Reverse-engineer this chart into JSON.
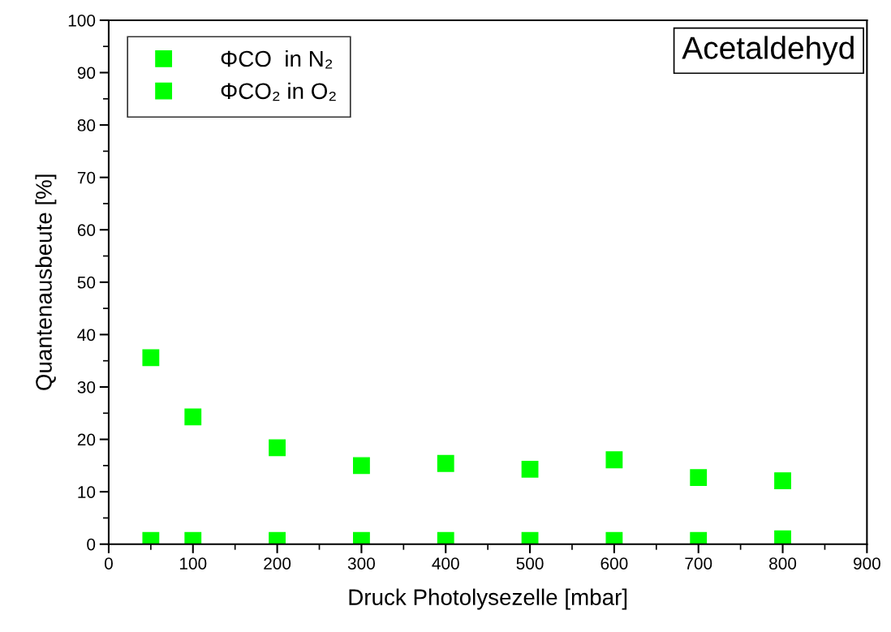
{
  "chart_data": {
    "type": "scatter",
    "xlabel": "Druck Photolysezelle [mbar]",
    "ylabel": "Quantenausbeute [%]",
    "annotations": [
      "Acetaldehyd"
    ],
    "x": [
      50,
      100,
      200,
      300,
      400,
      500,
      600,
      700,
      800
    ],
    "series": [
      {
        "name": "ΦCO  in N₂",
        "color": "#00ff00",
        "values": [
          35.6,
          24.3,
          18.4,
          15.0,
          15.4,
          14.3,
          16.1,
          12.7,
          12.1
        ]
      },
      {
        "name": "ΦCO₂ in O₂",
        "color": "#00ff00",
        "values": [
          0.7,
          0.7,
          0.7,
          0.7,
          0.7,
          0.7,
          0.7,
          0.7,
          1.0
        ]
      }
    ],
    "xlim": [
      0,
      900
    ],
    "ylim": [
      0,
      100
    ],
    "xticks": [
      0,
      {
        "value": 50,
        "label": null
      },
      100,
      {
        "value": 150,
        "label": null
      },
      200,
      {
        "value": 250,
        "label": null
      },
      300,
      {
        "value": 350,
        "label": null
      },
      400,
      {
        "value": 450,
        "label": null
      },
      500,
      {
        "value": 550,
        "label": null
      },
      600,
      {
        "value": 650,
        "label": null
      },
      700,
      {
        "value": 750,
        "label": null
      },
      800,
      {
        "value": 850,
        "label": null
      },
      900
    ],
    "yticks": [
      0,
      {
        "value": 5,
        "label": null
      },
      10,
      {
        "value": 15,
        "label": null
      },
      20,
      {
        "value": 25,
        "label": null
      },
      30,
      {
        "value": 35,
        "label": null
      },
      40,
      {
        "value": 45,
        "label": null
      },
      50,
      {
        "value": 55,
        "label": null
      },
      60,
      {
        "value": 65,
        "label": null
      },
      70,
      {
        "value": 75,
        "label": null
      },
      80,
      {
        "value": 85,
        "label": null
      },
      90,
      {
        "value": 95,
        "label": null
      },
      100
    ],
    "grid": false,
    "legend": "top left",
    "marker": "square"
  }
}
